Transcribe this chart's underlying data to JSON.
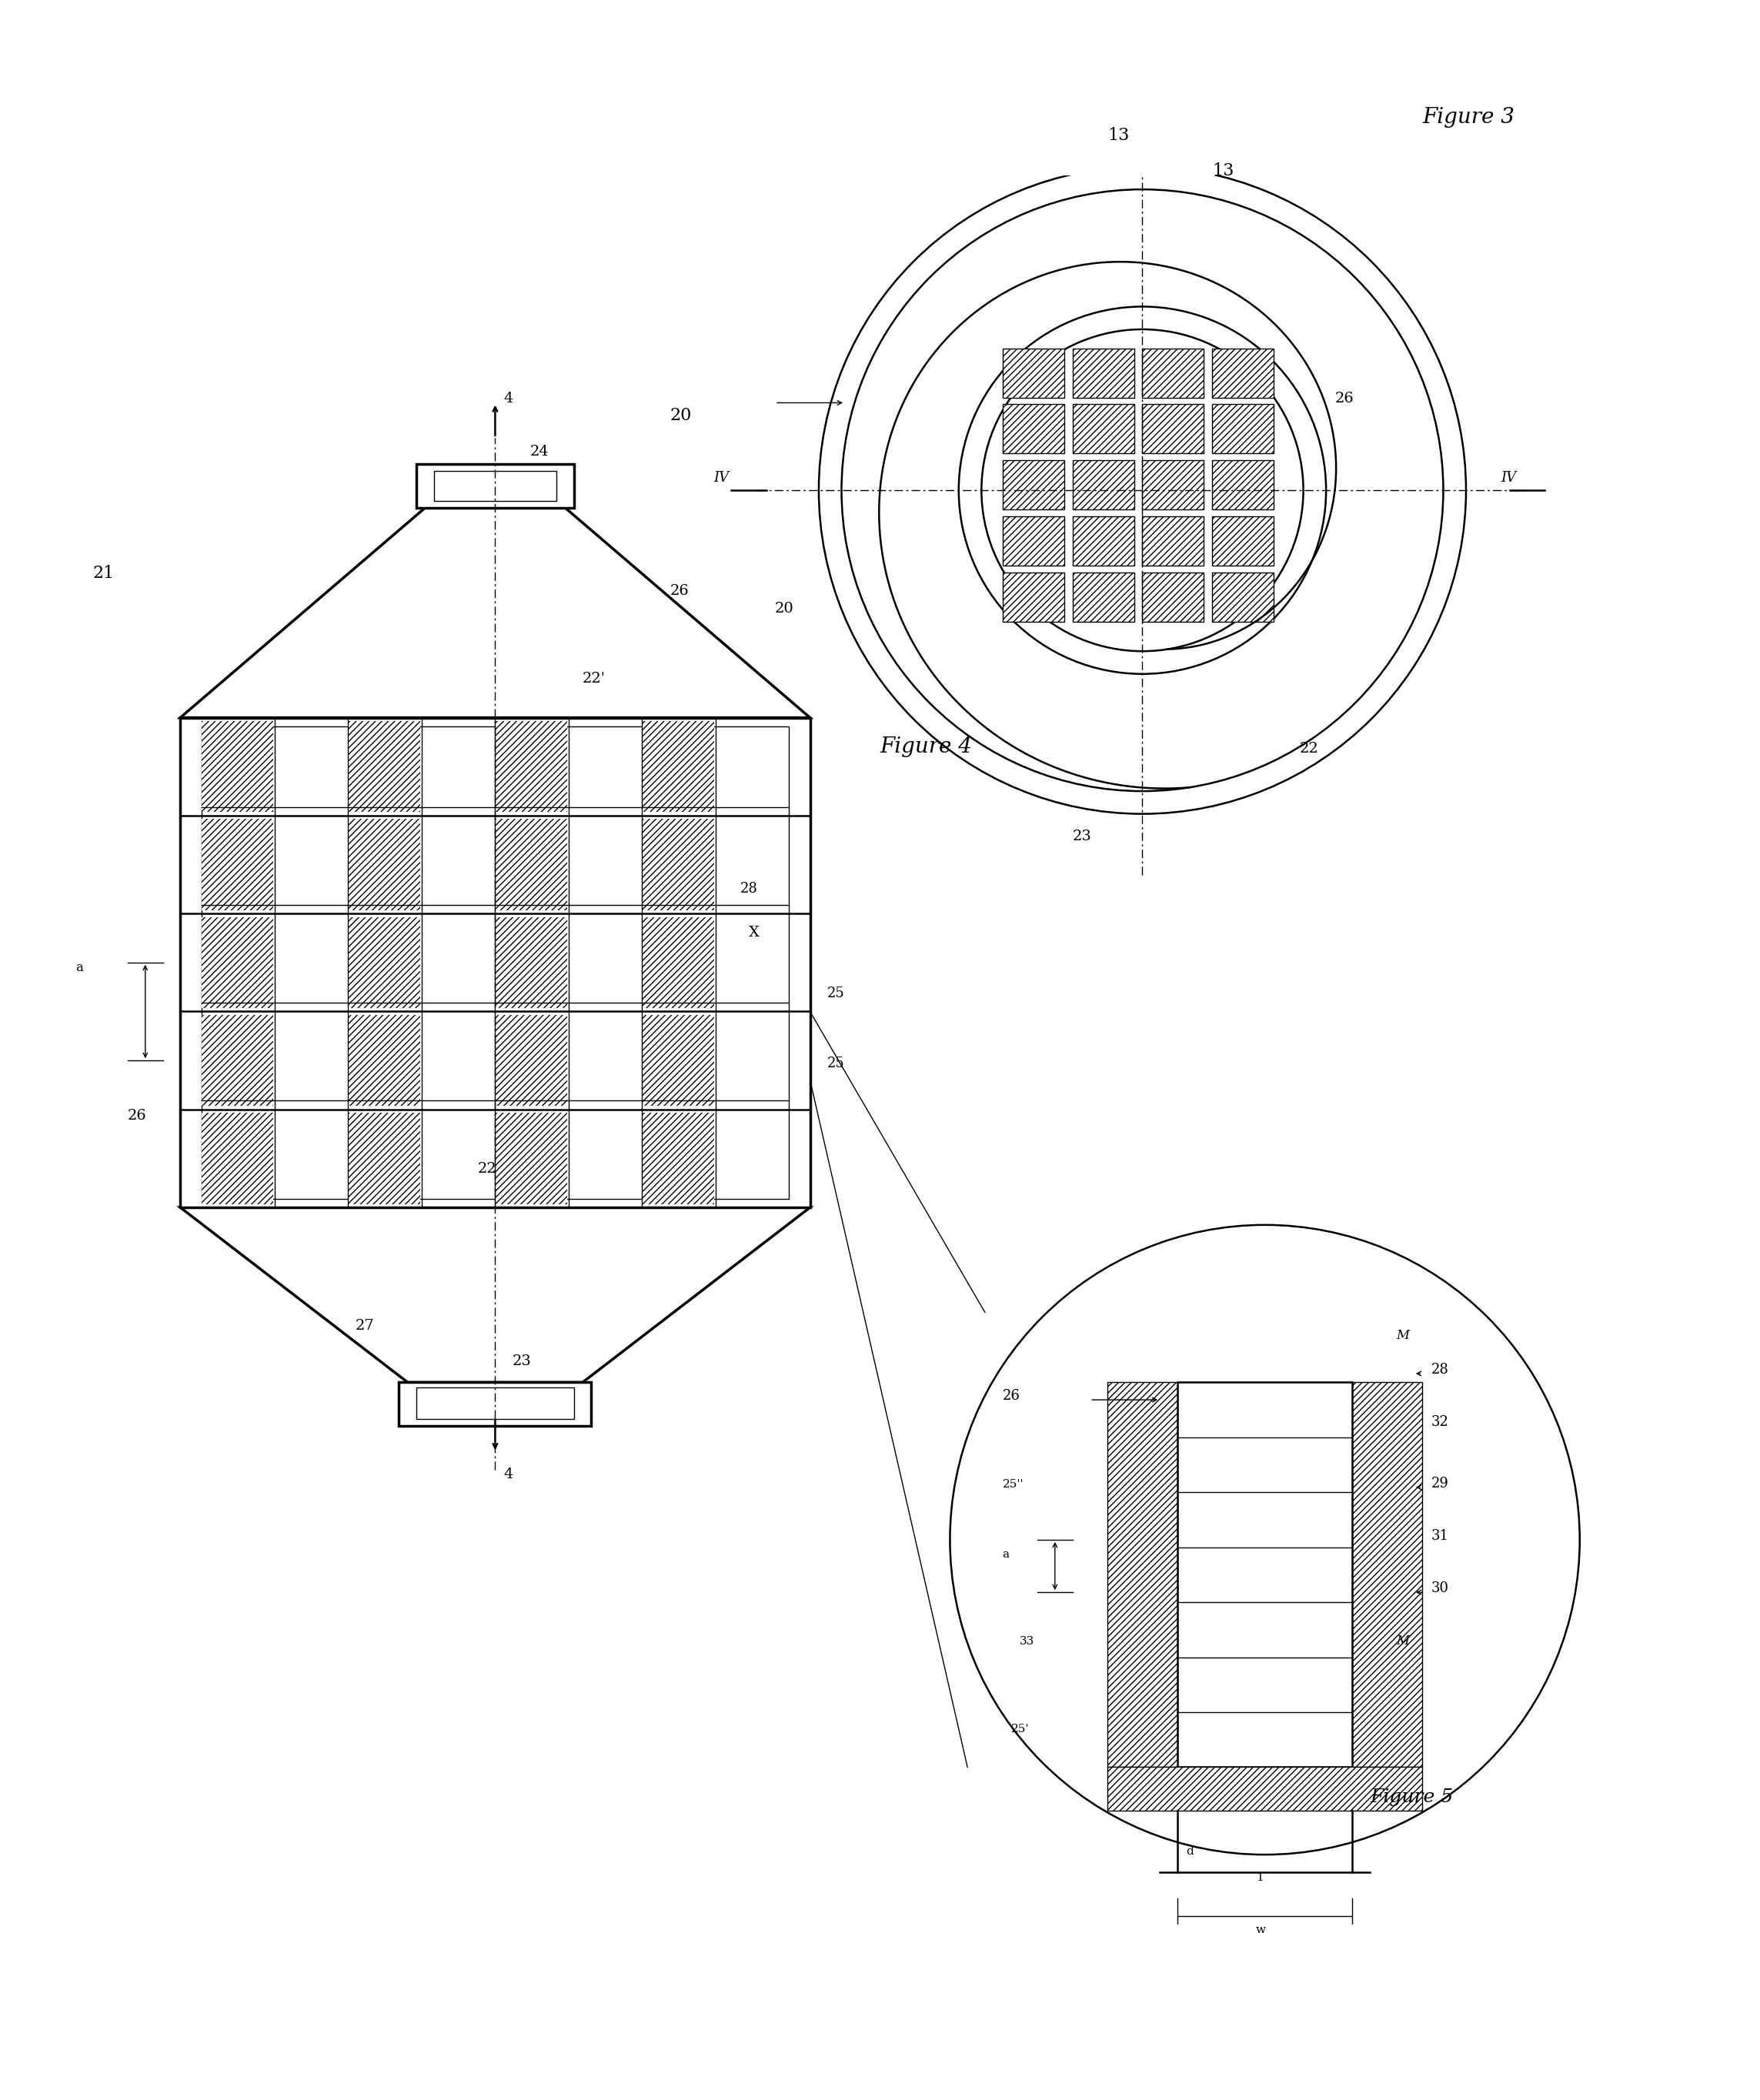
{
  "bg_color": "#ffffff",
  "line_color": "#000000",
  "fig_width": 22.87,
  "fig_height": 27.29,
  "annotations": {
    "figure3_label": "Figure 3",
    "figure4_label": "Figure 4",
    "figure5_label": "Figure 5",
    "label_20_top": "20",
    "label_13a": "13",
    "label_13b": "13",
    "label_26_top": "26",
    "label_22_top": "22",
    "label_23_top": "23",
    "label_IV_left": "IV",
    "label_IV_right": "IV",
    "label_21": "21",
    "label_24": "24",
    "label_4_top": "4",
    "label_22prime": "22'",
    "label_26_mid": "26",
    "label_20_mid": "20",
    "label_28": "28",
    "label_25a": "25",
    "label_25b": "25",
    "label_a": "a",
    "label_26_bot": "26",
    "label_22_bot": "22",
    "label_27": "27",
    "label_23_bot": "23",
    "label_4_bot": "4",
    "label_26_fig5": "26",
    "label_M_top": "M",
    "label_28_fig5": "28",
    "label_32": "32",
    "label_29": "29",
    "label_31": "31",
    "label_30": "30",
    "label_M_bot": "M",
    "label_25pp": "25''",
    "label_a_fig5": "a",
    "label_33": "33",
    "label_25p": "25'",
    "label_d": "d",
    "label_w": "w",
    "label_1": "1"
  }
}
